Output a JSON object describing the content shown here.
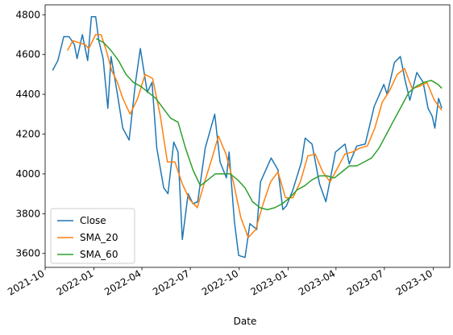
{
  "chart_data": {
    "type": "line",
    "title": "",
    "xlabel": "Date",
    "ylabel": "",
    "x_range": [
      "2021-10-01",
      "2023-11-01"
    ],
    "ylim": [
      3530,
      4850
    ],
    "x_ticks": [
      {
        "date": "2021-10-01",
        "label": "2021-10"
      },
      {
        "date": "2022-01-01",
        "label": "2022-01"
      },
      {
        "date": "2022-04-01",
        "label": "2022-04"
      },
      {
        "date": "2022-07-01",
        "label": "2022-07"
      },
      {
        "date": "2022-10-01",
        "label": "2022-10"
      },
      {
        "date": "2023-01-01",
        "label": "2023-01"
      },
      {
        "date": "2023-04-01",
        "label": "2023-04"
      },
      {
        "date": "2023-07-01",
        "label": "2023-07"
      },
      {
        "date": "2023-10-01",
        "label": "2023-10"
      }
    ],
    "y_ticks": [
      3600,
      3800,
      4000,
      4200,
      4400,
      4600,
      4800
    ],
    "grid": false,
    "legend_position": "lower-left",
    "series": [
      {
        "name": "Close",
        "color": "#1f77b4",
        "points": [
          [
            "2021-10-15",
            4520
          ],
          [
            "2021-10-25",
            4570
          ],
          [
            "2021-11-05",
            4690
          ],
          [
            "2021-11-15",
            4690
          ],
          [
            "2021-11-25",
            4650
          ],
          [
            "2021-11-30",
            4580
          ],
          [
            "2021-12-10",
            4700
          ],
          [
            "2021-12-20",
            4570
          ],
          [
            "2021-12-27",
            4790
          ],
          [
            "2022-01-04",
            4790
          ],
          [
            "2022-01-10",
            4670
          ],
          [
            "2022-01-18",
            4580
          ],
          [
            "2022-01-27",
            4330
          ],
          [
            "2022-02-02",
            4590
          ],
          [
            "2022-02-14",
            4400
          ],
          [
            "2022-02-24",
            4230
          ],
          [
            "2022-03-08",
            4170
          ],
          [
            "2022-03-20",
            4460
          ],
          [
            "2022-03-29",
            4630
          ],
          [
            "2022-04-11",
            4410
          ],
          [
            "2022-04-20",
            4460
          ],
          [
            "2022-04-29",
            4130
          ],
          [
            "2022-05-12",
            3930
          ],
          [
            "2022-05-20",
            3900
          ],
          [
            "2022-05-31",
            4160
          ],
          [
            "2022-06-08",
            4110
          ],
          [
            "2022-06-16",
            3670
          ],
          [
            "2022-06-27",
            3900
          ],
          [
            "2022-07-06",
            3850
          ],
          [
            "2022-07-15",
            3860
          ],
          [
            "2022-07-29",
            4130
          ],
          [
            "2022-08-16",
            4300
          ],
          [
            "2022-08-26",
            4060
          ],
          [
            "2022-09-07",
            3980
          ],
          [
            "2022-09-12",
            4110
          ],
          [
            "2022-09-22",
            3760
          ],
          [
            "2022-09-30",
            3590
          ],
          [
            "2022-10-12",
            3580
          ],
          [
            "2022-10-21",
            3750
          ],
          [
            "2022-11-03",
            3720
          ],
          [
            "2022-11-10",
            3960
          ],
          [
            "2022-11-30",
            4080
          ],
          [
            "2022-12-13",
            4020
          ],
          [
            "2022-12-22",
            3820
          ],
          [
            "2022-12-29",
            3840
          ],
          [
            "2023-01-10",
            3920
          ],
          [
            "2023-01-26",
            4060
          ],
          [
            "2023-02-02",
            4180
          ],
          [
            "2023-02-15",
            4150
          ],
          [
            "2023-03-01",
            3950
          ],
          [
            "2023-03-13",
            3860
          ],
          [
            "2023-03-31",
            4110
          ],
          [
            "2023-04-18",
            4150
          ],
          [
            "2023-04-26",
            4050
          ],
          [
            "2023-05-10",
            4140
          ],
          [
            "2023-05-26",
            4150
          ],
          [
            "2023-06-12",
            4340
          ],
          [
            "2023-06-30",
            4450
          ],
          [
            "2023-07-06",
            4400
          ],
          [
            "2023-07-20",
            4560
          ],
          [
            "2023-07-31",
            4590
          ],
          [
            "2023-08-09",
            4470
          ],
          [
            "2023-08-18",
            4370
          ],
          [
            "2023-08-31",
            4510
          ],
          [
            "2023-09-12",
            4460
          ],
          [
            "2023-09-21",
            4330
          ],
          [
            "2023-09-29",
            4290
          ],
          [
            "2023-10-04",
            4230
          ],
          [
            "2023-10-11",
            4380
          ],
          [
            "2023-10-17",
            4330
          ]
        ]
      },
      {
        "name": "SMA_20",
        "color": "#ff7f0e",
        "points": [
          [
            "2021-11-12",
            4620
          ],
          [
            "2021-11-22",
            4670
          ],
          [
            "2021-12-03",
            4660
          ],
          [
            "2021-12-15",
            4650
          ],
          [
            "2021-12-22",
            4630
          ],
          [
            "2022-01-04",
            4700
          ],
          [
            "2022-01-14",
            4700
          ],
          [
            "2022-01-24",
            4620
          ],
          [
            "2022-02-03",
            4520
          ],
          [
            "2022-02-14",
            4460
          ],
          [
            "2022-02-24",
            4380
          ],
          [
            "2022-03-10",
            4300
          ],
          [
            "2022-03-24",
            4380
          ],
          [
            "2022-04-07",
            4500
          ],
          [
            "2022-04-21",
            4480
          ],
          [
            "2022-05-05",
            4300
          ],
          [
            "2022-05-19",
            4060
          ],
          [
            "2022-06-02",
            4060
          ],
          [
            "2022-06-16",
            3950
          ],
          [
            "2022-06-30",
            3870
          ],
          [
            "2022-07-14",
            3830
          ],
          [
            "2022-07-28",
            3960
          ],
          [
            "2022-08-11",
            4080
          ],
          [
            "2022-08-23",
            4190
          ],
          [
            "2022-09-06",
            4100
          ],
          [
            "2022-09-20",
            3960
          ],
          [
            "2022-10-04",
            3780
          ],
          [
            "2022-10-18",
            3680
          ],
          [
            "2022-11-01",
            3720
          ],
          [
            "2022-11-15",
            3850
          ],
          [
            "2022-11-29",
            3960
          ],
          [
            "2022-12-13",
            4010
          ],
          [
            "2022-12-27",
            3880
          ],
          [
            "2023-01-10",
            3880
          ],
          [
            "2023-01-24",
            3960
          ],
          [
            "2023-02-07",
            4090
          ],
          [
            "2023-02-21",
            4100
          ],
          [
            "2023-03-07",
            4010
          ],
          [
            "2023-03-21",
            3960
          ],
          [
            "2023-04-04",
            4030
          ],
          [
            "2023-04-18",
            4100
          ],
          [
            "2023-05-02",
            4110
          ],
          [
            "2023-05-16",
            4130
          ],
          [
            "2023-05-30",
            4140
          ],
          [
            "2023-06-13",
            4230
          ],
          [
            "2023-06-27",
            4360
          ],
          [
            "2023-07-11",
            4420
          ],
          [
            "2023-07-25",
            4500
          ],
          [
            "2023-08-08",
            4530
          ],
          [
            "2023-08-22",
            4430
          ],
          [
            "2023-09-05",
            4440
          ],
          [
            "2023-09-19",
            4460
          ],
          [
            "2023-10-03",
            4370
          ],
          [
            "2023-10-17",
            4320
          ]
        ]
      },
      {
        "name": "SMA_60",
        "color": "#2ca02c",
        "points": [
          [
            "2022-01-05",
            4680
          ],
          [
            "2022-01-19",
            4660
          ],
          [
            "2022-02-02",
            4620
          ],
          [
            "2022-02-16",
            4570
          ],
          [
            "2022-03-02",
            4500
          ],
          [
            "2022-03-16",
            4460
          ],
          [
            "2022-03-30",
            4440
          ],
          [
            "2022-04-13",
            4410
          ],
          [
            "2022-04-27",
            4380
          ],
          [
            "2022-05-11",
            4330
          ],
          [
            "2022-05-25",
            4280
          ],
          [
            "2022-06-08",
            4260
          ],
          [
            "2022-06-22",
            4130
          ],
          [
            "2022-07-06",
            4020
          ],
          [
            "2022-07-20",
            3940
          ],
          [
            "2022-08-03",
            3970
          ],
          [
            "2022-08-17",
            4000
          ],
          [
            "2022-08-31",
            4000
          ],
          [
            "2022-09-14",
            4000
          ],
          [
            "2022-09-28",
            3970
          ],
          [
            "2022-10-12",
            3930
          ],
          [
            "2022-10-26",
            3860
          ],
          [
            "2022-11-09",
            3830
          ],
          [
            "2022-11-23",
            3820
          ],
          [
            "2022-12-07",
            3830
          ],
          [
            "2022-12-21",
            3850
          ],
          [
            "2023-01-04",
            3880
          ],
          [
            "2023-01-18",
            3920
          ],
          [
            "2023-02-01",
            3940
          ],
          [
            "2023-02-15",
            3970
          ],
          [
            "2023-03-01",
            3990
          ],
          [
            "2023-03-15",
            3990
          ],
          [
            "2023-03-29",
            3980
          ],
          [
            "2023-04-12",
            4010
          ],
          [
            "2023-04-26",
            4040
          ],
          [
            "2023-05-10",
            4040
          ],
          [
            "2023-05-24",
            4060
          ],
          [
            "2023-06-07",
            4080
          ],
          [
            "2023-06-21",
            4130
          ],
          [
            "2023-07-05",
            4200
          ],
          [
            "2023-07-19",
            4270
          ],
          [
            "2023-08-02",
            4340
          ],
          [
            "2023-08-16",
            4410
          ],
          [
            "2023-08-30",
            4440
          ],
          [
            "2023-09-13",
            4460
          ],
          [
            "2023-09-27",
            4470
          ],
          [
            "2023-10-10",
            4450
          ],
          [
            "2023-10-17",
            4430
          ]
        ]
      }
    ]
  }
}
